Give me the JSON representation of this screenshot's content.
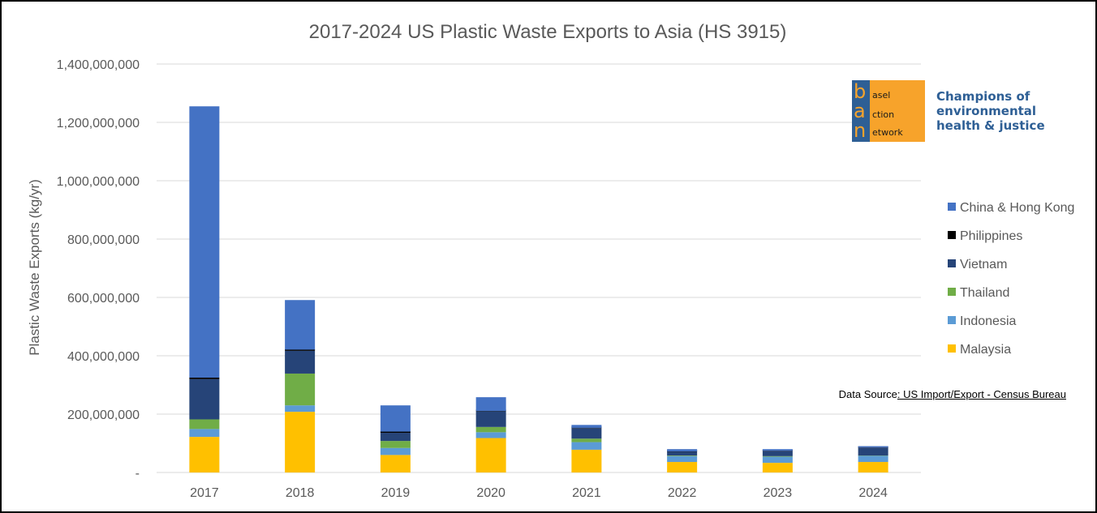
{
  "chart_data": {
    "type": "bar",
    "stacked": true,
    "title": "2017-2024 US Plastic Waste Exports to Asia (HS 3915)",
    "ylabel": "Plastic Waste Exports (kg/yr)",
    "xlabel": "",
    "ylim": [
      0,
      1400000000
    ],
    "yticks": [
      0,
      200000000,
      400000000,
      600000000,
      800000000,
      1000000000,
      1200000000,
      1400000000
    ],
    "ytick_labels": [
      "-",
      "200,000,000",
      "400,000,000",
      "600,000,000",
      "800,000,000",
      "1,000,000,000",
      "1,200,000,000",
      "1,400,000,000"
    ],
    "grid": true,
    "legend_position": "right",
    "categories": [
      "2017",
      "2018",
      "2019",
      "2020",
      "2021",
      "2022",
      "2023",
      "2024"
    ],
    "series": [
      {
        "name": "Malaysia",
        "color": "#ffc000",
        "values": [
          122000000,
          208000000,
          60000000,
          118000000,
          78000000,
          36000000,
          33000000,
          36000000
        ]
      },
      {
        "name": "Indonesia",
        "color": "#5b9bd5",
        "values": [
          27000000,
          22000000,
          24000000,
          20000000,
          26000000,
          20000000,
          21000000,
          21000000
        ]
      },
      {
        "name": "Thailand",
        "color": "#70ad47",
        "values": [
          33000000,
          109000000,
          24000000,
          18000000,
          12000000,
          2000000,
          2000000,
          1000000
        ]
      },
      {
        "name": "Vietnam",
        "color": "#264478",
        "values": [
          138000000,
          78000000,
          28000000,
          54000000,
          36000000,
          13000000,
          17000000,
          26000000
        ]
      },
      {
        "name": "Philippines",
        "color": "#000000",
        "values": [
          5000000,
          4000000,
          4000000,
          1000000,
          1000000,
          1000000,
          1000000,
          1000000
        ]
      },
      {
        "name": "China & Hong Kong",
        "color": "#4472c4",
        "values": [
          930000000,
          170000000,
          90000000,
          47000000,
          10000000,
          8000000,
          6000000,
          5000000
        ]
      }
    ]
  },
  "logo": {
    "letters": [
      "b",
      "a",
      "n"
    ],
    "words": [
      "asel",
      "ction",
      "etwork"
    ],
    "tagline": [
      "Champions of",
      "environmental",
      "health & justice"
    ]
  },
  "source": {
    "prefix": "Data Source",
    "link_text": ": US Import/Export - Census Bureau"
  }
}
